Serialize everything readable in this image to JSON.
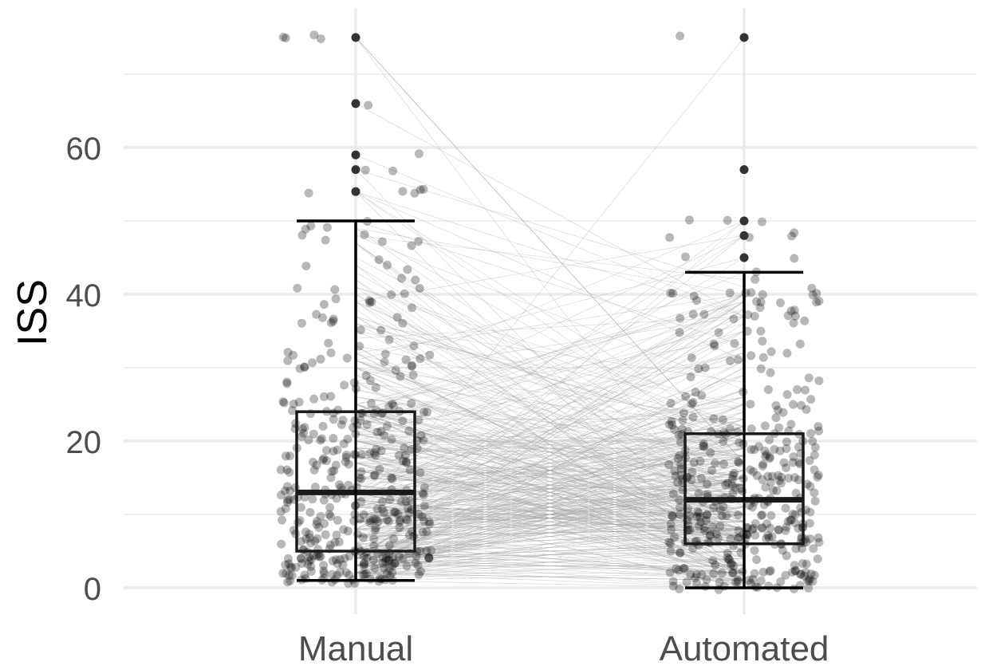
{
  "chart_data": {
    "type": "boxplot",
    "ylabel": "ISS",
    "xlabel": "",
    "ylim": [
      0,
      75
    ],
    "y_ticks": [
      0,
      20,
      40,
      60
    ],
    "grid": true,
    "categories": [
      "Manual",
      "Automated"
    ],
    "boxes": [
      {
        "name": "Manual",
        "q1": 5,
        "median": 13,
        "q3": 24,
        "whisker_low": 1,
        "whisker_high": 50,
        "outliers": [
          54,
          57,
          59,
          66,
          75
        ]
      },
      {
        "name": "Automated",
        "q1": 6,
        "median": 12,
        "q3": 21,
        "whisker_low": 0,
        "whisker_high": 43,
        "outliers": [
          45,
          48,
          50,
          57,
          75
        ]
      }
    ],
    "paired_points": true,
    "n_subjects": 420
  }
}
